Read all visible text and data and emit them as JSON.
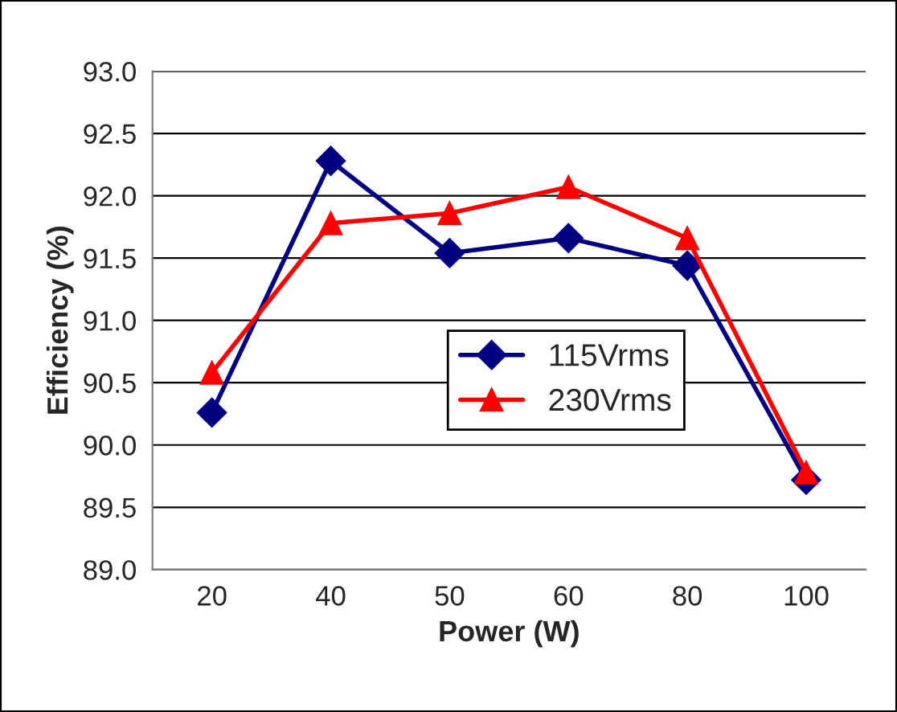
{
  "chart_data": {
    "type": "line",
    "xlabel": "Power (W)",
    "ylabel": "Efficiency (%)",
    "categories": [
      "20",
      "40",
      "50",
      "60",
      "80",
      "100"
    ],
    "series": [
      {
        "name": "115Vrms",
        "color": "#000080",
        "marker": "diamond",
        "values": [
          90.26,
          92.28,
          91.54,
          91.66,
          91.44,
          89.72
        ]
      },
      {
        "name": "230Vrms",
        "color": "#ff0000",
        "marker": "triangle",
        "values": [
          90.58,
          91.78,
          91.86,
          92.07,
          91.66,
          89.78
        ]
      }
    ],
    "ylim": [
      89.0,
      93.0
    ],
    "yticks": [
      {
        "value": 89,
        "label": "89.0"
      },
      {
        "value": 89.5,
        "label": "89.5"
      },
      {
        "value": 90,
        "label": "90.0"
      },
      {
        "value": 90.5,
        "label": "90.5"
      },
      {
        "value": 91,
        "label": "91.0"
      },
      {
        "value": 91.5,
        "label": "91.5"
      },
      {
        "value": 92,
        "label": "92.0"
      },
      {
        "value": 92.5,
        "label": "92.5"
      },
      {
        "value": 93,
        "label": "93.0"
      }
    ],
    "grid": "y",
    "legend": "center"
  }
}
